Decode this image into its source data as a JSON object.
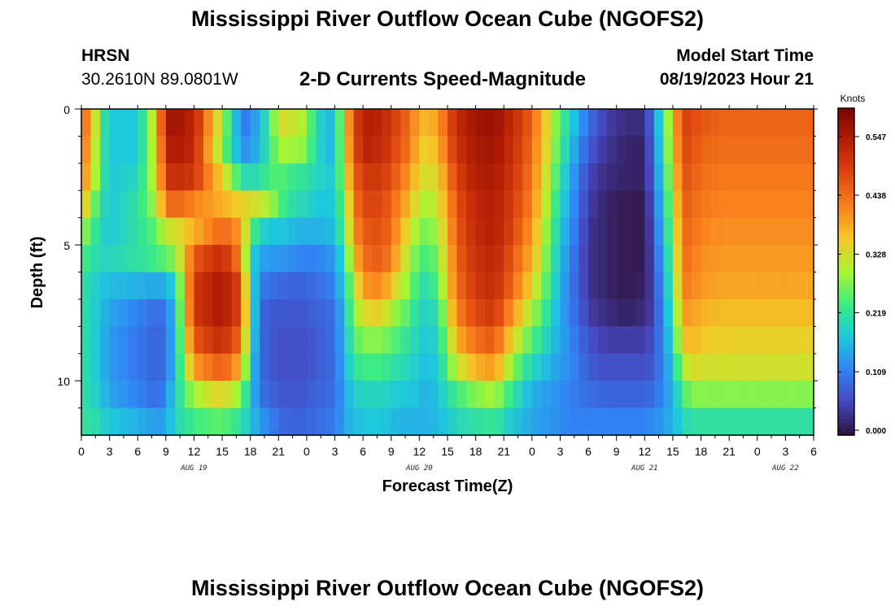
{
  "header": {
    "title": "Mississippi River Outflow Ocean Cube (NGOFS2)",
    "station": "HRSN",
    "coords": "30.2610N  89.0801W",
    "subtitle": "2-D Currents Speed-Magnitude",
    "start_label": "Model Start Time",
    "start_time": "08/19/2023 Hour 21"
  },
  "footer": {
    "title": "Mississippi River Outflow Ocean Cube (NGOFS2)"
  },
  "chart_data": {
    "type": "heatmap",
    "xlabel": "Forecast Time(Z)",
    "ylabel": "Depth (ft)",
    "x_ticks": [
      "0",
      "3",
      "6",
      "9",
      "12",
      "15",
      "18",
      "21",
      "0",
      "3",
      "6",
      "9",
      "12",
      "15",
      "18",
      "21",
      "0",
      "3",
      "6",
      "9",
      "12",
      "15",
      "18",
      "21",
      "0",
      "3",
      "6"
    ],
    "x_range_hours": [
      0,
      78
    ],
    "date_labels": [
      {
        "label": "AUG 19",
        "hour": 12
      },
      {
        "label": "AUG 20",
        "hour": 36
      },
      {
        "label": "AUG 21",
        "hour": 60
      },
      {
        "label": "AUG 22",
        "hour": 75
      }
    ],
    "y_ticks": [
      "0",
      "5",
      "10"
    ],
    "y_range_ft": [
      0,
      12
    ],
    "colorbar": {
      "unit": "Knots",
      "ticks": [
        "0.000",
        "0.109",
        "0.219",
        "0.328",
        "0.438",
        "0.547"
      ],
      "range": [
        0,
        0.6
      ]
    },
    "n_depth_layers": 12,
    "n_time_steps": 78,
    "time_anchor_hours": [
      0,
      1,
      2,
      3,
      6,
      8,
      9,
      10,
      12,
      15,
      17,
      18,
      19,
      20,
      21,
      22,
      24,
      25,
      27,
      28,
      29,
      30,
      32,
      33,
      35,
      36,
      37,
      38,
      40,
      42,
      44,
      46,
      48,
      51,
      52,
      53,
      54,
      56,
      58,
      60,
      61,
      63,
      64,
      65,
      66,
      68,
      70,
      72,
      73,
      74,
      75,
      76,
      77,
      78
    ],
    "speed_grid_knots": [
      [
        0.45,
        0.4,
        0.25,
        0.18,
        0.18,
        0.35,
        0.55,
        0.56,
        0.53,
        0.3,
        0.12,
        0.11,
        0.18,
        0.22,
        0.34,
        0.33,
        0.3,
        0.2,
        0.16,
        0.35,
        0.47,
        0.54,
        0.53,
        0.5,
        0.44,
        0.38,
        0.37,
        0.4,
        0.52,
        0.56,
        0.57,
        0.52,
        0.45,
        0.25,
        0.2,
        0.15,
        0.1,
        0.05,
        0.03,
        0.03,
        0.12,
        0.35,
        0.49,
        0.48,
        0.46,
        0.45,
        0.45,
        0.45,
        0.45,
        0.45,
        0.45,
        0.45,
        0.45,
        0.45
      ],
      [
        0.44,
        0.38,
        0.24,
        0.18,
        0.18,
        0.34,
        0.53,
        0.55,
        0.52,
        0.28,
        0.14,
        0.13,
        0.18,
        0.22,
        0.3,
        0.3,
        0.28,
        0.2,
        0.16,
        0.34,
        0.46,
        0.53,
        0.52,
        0.49,
        0.43,
        0.36,
        0.35,
        0.38,
        0.51,
        0.55,
        0.56,
        0.51,
        0.44,
        0.24,
        0.18,
        0.13,
        0.08,
        0.04,
        0.02,
        0.02,
        0.11,
        0.34,
        0.48,
        0.47,
        0.45,
        0.44,
        0.44,
        0.44,
        0.44,
        0.44,
        0.44,
        0.44,
        0.44,
        0.44
      ],
      [
        0.42,
        0.36,
        0.24,
        0.18,
        0.2,
        0.33,
        0.5,
        0.52,
        0.5,
        0.35,
        0.22,
        0.2,
        0.22,
        0.24,
        0.26,
        0.24,
        0.22,
        0.2,
        0.18,
        0.32,
        0.44,
        0.5,
        0.5,
        0.47,
        0.4,
        0.34,
        0.33,
        0.35,
        0.49,
        0.54,
        0.55,
        0.5,
        0.43,
        0.22,
        0.16,
        0.11,
        0.06,
        0.03,
        0.02,
        0.02,
        0.1,
        0.32,
        0.47,
        0.46,
        0.44,
        0.43,
        0.43,
        0.43,
        0.43,
        0.43,
        0.43,
        0.43,
        0.43,
        0.43
      ],
      [
        0.38,
        0.3,
        0.22,
        0.18,
        0.22,
        0.3,
        0.44,
        0.45,
        0.42,
        0.38,
        0.35,
        0.34,
        0.32,
        0.3,
        0.26,
        0.22,
        0.2,
        0.18,
        0.18,
        0.28,
        0.42,
        0.48,
        0.48,
        0.45,
        0.37,
        0.31,
        0.3,
        0.33,
        0.47,
        0.53,
        0.54,
        0.49,
        0.42,
        0.2,
        0.15,
        0.1,
        0.05,
        0.02,
        0.01,
        0.01,
        0.09,
        0.3,
        0.46,
        0.45,
        0.43,
        0.42,
        0.42,
        0.42,
        0.42,
        0.42,
        0.42,
        0.42,
        0.42,
        0.42
      ],
      [
        0.3,
        0.25,
        0.2,
        0.18,
        0.22,
        0.26,
        0.32,
        0.33,
        0.38,
        0.45,
        0.4,
        0.26,
        0.2,
        0.18,
        0.18,
        0.17,
        0.16,
        0.16,
        0.17,
        0.26,
        0.4,
        0.46,
        0.47,
        0.44,
        0.33,
        0.28,
        0.27,
        0.3,
        0.46,
        0.52,
        0.54,
        0.48,
        0.4,
        0.18,
        0.14,
        0.09,
        0.04,
        0.02,
        0.01,
        0.01,
        0.08,
        0.28,
        0.45,
        0.44,
        0.42,
        0.41,
        0.41,
        0.41,
        0.41,
        0.41,
        0.41,
        0.41,
        0.41,
        0.41
      ],
      [
        0.25,
        0.22,
        0.2,
        0.2,
        0.22,
        0.24,
        0.26,
        0.28,
        0.46,
        0.52,
        0.42,
        0.2,
        0.15,
        0.14,
        0.14,
        0.13,
        0.12,
        0.12,
        0.14,
        0.22,
        0.36,
        0.44,
        0.46,
        0.42,
        0.3,
        0.25,
        0.24,
        0.28,
        0.45,
        0.51,
        0.53,
        0.46,
        0.38,
        0.17,
        0.13,
        0.08,
        0.04,
        0.02,
        0.01,
        0.01,
        0.07,
        0.26,
        0.44,
        0.43,
        0.41,
        0.4,
        0.4,
        0.4,
        0.4,
        0.4,
        0.4,
        0.4,
        0.4,
        0.4
      ],
      [
        0.22,
        0.2,
        0.18,
        0.17,
        0.16,
        0.15,
        0.16,
        0.2,
        0.5,
        0.55,
        0.48,
        0.22,
        0.12,
        0.1,
        0.1,
        0.09,
        0.09,
        0.1,
        0.12,
        0.2,
        0.3,
        0.4,
        0.42,
        0.36,
        0.28,
        0.22,
        0.21,
        0.26,
        0.44,
        0.5,
        0.52,
        0.44,
        0.35,
        0.16,
        0.12,
        0.08,
        0.04,
        0.02,
        0.01,
        0.02,
        0.06,
        0.24,
        0.43,
        0.42,
        0.4,
        0.39,
        0.39,
        0.39,
        0.39,
        0.39,
        0.39,
        0.39,
        0.39,
        0.39
      ],
      [
        0.22,
        0.2,
        0.17,
        0.15,
        0.12,
        0.1,
        0.11,
        0.18,
        0.5,
        0.55,
        0.48,
        0.24,
        0.1,
        0.08,
        0.08,
        0.08,
        0.08,
        0.09,
        0.1,
        0.18,
        0.28,
        0.34,
        0.35,
        0.3,
        0.25,
        0.2,
        0.19,
        0.22,
        0.42,
        0.48,
        0.5,
        0.4,
        0.3,
        0.15,
        0.12,
        0.09,
        0.05,
        0.03,
        0.02,
        0.03,
        0.06,
        0.22,
        0.4,
        0.4,
        0.38,
        0.37,
        0.37,
        0.37,
        0.37,
        0.37,
        0.37,
        0.37,
        0.37,
        0.37
      ],
      [
        0.22,
        0.2,
        0.17,
        0.14,
        0.11,
        0.09,
        0.1,
        0.18,
        0.46,
        0.52,
        0.44,
        0.22,
        0.1,
        0.08,
        0.07,
        0.07,
        0.07,
        0.08,
        0.1,
        0.17,
        0.25,
        0.28,
        0.28,
        0.26,
        0.22,
        0.19,
        0.18,
        0.2,
        0.38,
        0.44,
        0.46,
        0.34,
        0.25,
        0.15,
        0.13,
        0.1,
        0.07,
        0.05,
        0.05,
        0.05,
        0.07,
        0.2,
        0.36,
        0.38,
        0.36,
        0.35,
        0.35,
        0.35,
        0.35,
        0.35,
        0.35,
        0.35,
        0.35,
        0.35
      ],
      [
        0.22,
        0.2,
        0.17,
        0.14,
        0.11,
        0.09,
        0.1,
        0.18,
        0.4,
        0.46,
        0.38,
        0.2,
        0.1,
        0.08,
        0.07,
        0.07,
        0.07,
        0.08,
        0.1,
        0.16,
        0.22,
        0.24,
        0.24,
        0.22,
        0.2,
        0.18,
        0.17,
        0.19,
        0.32,
        0.38,
        0.4,
        0.28,
        0.2,
        0.14,
        0.13,
        0.11,
        0.08,
        0.07,
        0.07,
        0.07,
        0.08,
        0.18,
        0.3,
        0.34,
        0.33,
        0.33,
        0.33,
        0.33,
        0.33,
        0.33,
        0.33,
        0.33,
        0.33,
        0.33
      ],
      [
        0.22,
        0.2,
        0.18,
        0.15,
        0.12,
        0.1,
        0.12,
        0.2,
        0.3,
        0.35,
        0.28,
        0.18,
        0.11,
        0.09,
        0.08,
        0.08,
        0.08,
        0.09,
        0.1,
        0.15,
        0.19,
        0.2,
        0.2,
        0.19,
        0.18,
        0.17,
        0.16,
        0.18,
        0.24,
        0.28,
        0.3,
        0.22,
        0.16,
        0.13,
        0.12,
        0.11,
        0.1,
        0.09,
        0.09,
        0.09,
        0.1,
        0.16,
        0.24,
        0.28,
        0.28,
        0.28,
        0.28,
        0.28,
        0.28,
        0.28,
        0.28,
        0.28,
        0.28,
        0.28
      ],
      [
        0.22,
        0.22,
        0.2,
        0.18,
        0.16,
        0.14,
        0.15,
        0.2,
        0.24,
        0.26,
        0.22,
        0.18,
        0.14,
        0.12,
        0.1,
        0.09,
        0.09,
        0.1,
        0.11,
        0.15,
        0.17,
        0.18,
        0.18,
        0.17,
        0.16,
        0.16,
        0.16,
        0.17,
        0.2,
        0.22,
        0.23,
        0.18,
        0.15,
        0.13,
        0.12,
        0.12,
        0.12,
        0.12,
        0.12,
        0.12,
        0.13,
        0.16,
        0.2,
        0.22,
        0.22,
        0.22,
        0.22,
        0.22,
        0.22,
        0.22,
        0.22,
        0.22,
        0.22,
        0.22
      ]
    ]
  }
}
